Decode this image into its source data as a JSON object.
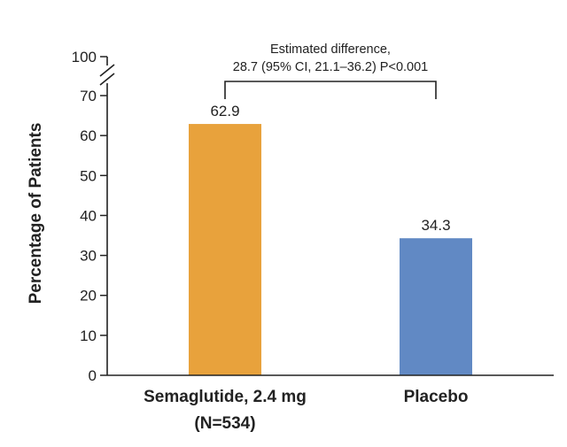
{
  "chart_data": {
    "type": "bar",
    "categories": [
      "Semaglutide, 2.4 mg",
      "Placebo"
    ],
    "category_sublabels": [
      "(N=534)",
      ""
    ],
    "values": [
      62.9,
      34.3
    ],
    "data_labels": [
      "62.9",
      "34.3"
    ],
    "bar_colors": [
      "#E8A23C",
      "#6189C4"
    ],
    "xlabel": "",
    "ylabel": "Percentage of Patients",
    "ylim": [
      0,
      70
    ],
    "y_ticks": [
      0,
      10,
      20,
      30,
      40,
      50,
      60,
      70
    ],
    "y_tick_labels": [
      "0",
      "10",
      "20",
      "30",
      "40",
      "50",
      "60",
      "70"
    ],
    "axis_break_tick": {
      "value": 100,
      "label": "100"
    },
    "grid": false,
    "annotation": {
      "line1": "Estimated difference,",
      "line2": "28.7 (95% CI, 21.1–36.2) P<0.001"
    }
  }
}
